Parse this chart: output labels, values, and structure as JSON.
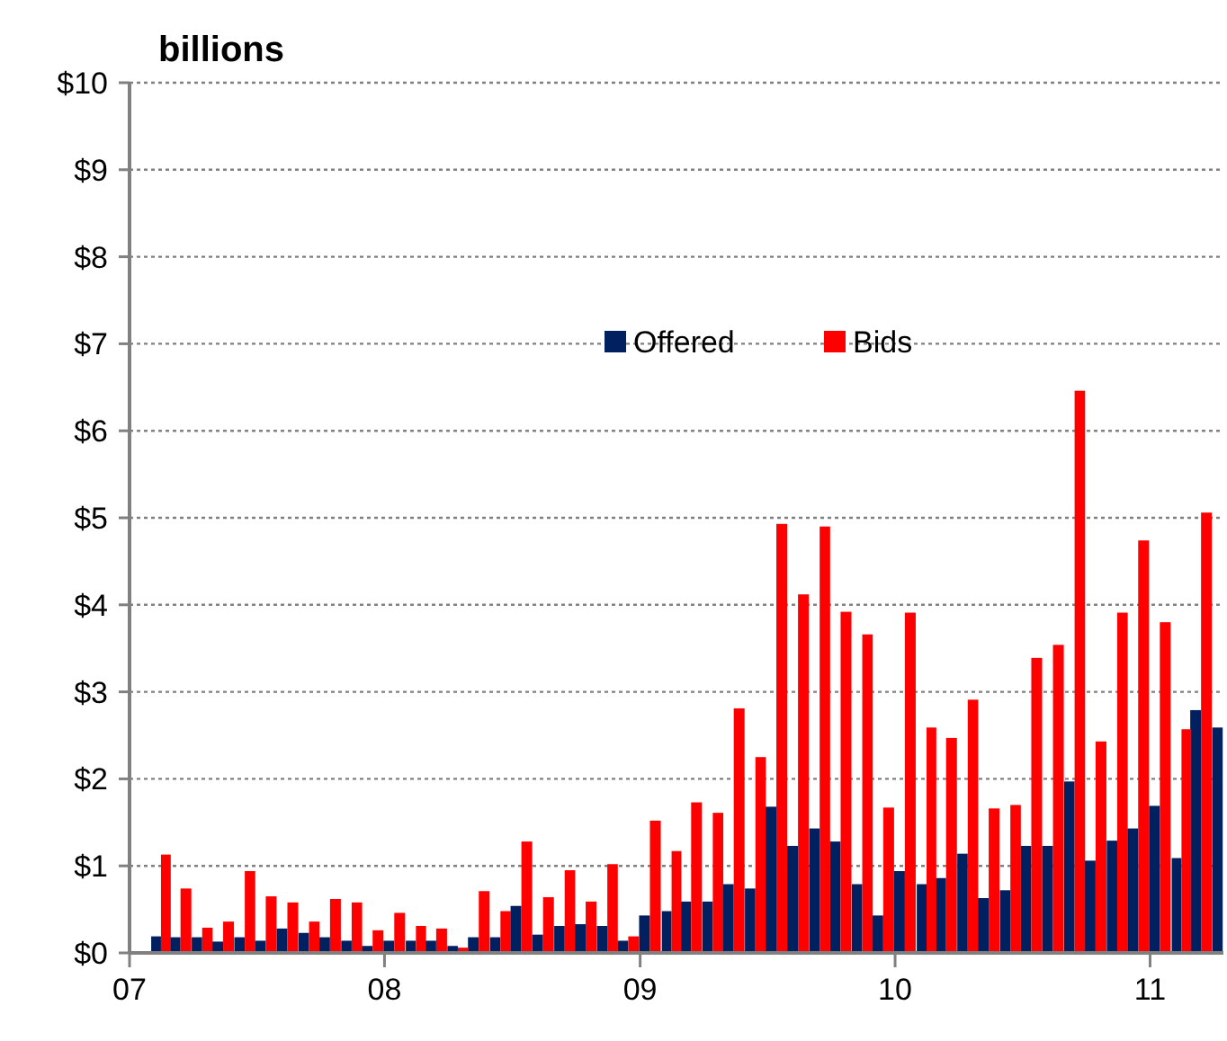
{
  "chart_data": {
    "type": "bar",
    "title": "billions",
    "x": [
      "2007-02-15",
      "2007-03-15",
      "2007-04-15",
      "2007-05-15",
      "2007-06-15",
      "2007-07-15",
      "2007-08-15",
      "2007-09-15",
      "2007-10-15",
      "2007-11-15",
      "2007-12-15",
      "2008-01-15",
      "2008-02-15",
      "2008-03-15",
      "2008-04-15",
      "2008-05-15",
      "2008-06-15",
      "2008-07-15",
      "2008-08-15",
      "2008-09-15",
      "2008-10-15",
      "2008-11-15",
      "2008-12-15",
      "2009-01-15",
      "2009-02-15",
      "2009-03-15",
      "2009-04-15",
      "2009-05-15",
      "2009-06-15",
      "2009-07-15",
      "2009-08-15",
      "2009-09-15",
      "2009-10-15",
      "2009-11-15",
      "2009-12-15",
      "2010-01-15",
      "2010-02-15",
      "2010-03-15",
      "2010-04-15",
      "2010-05-15",
      "2010-06-15",
      "2010-07-15",
      "2010-08-15",
      "2010-09-15",
      "2010-10-15",
      "2010-11-15",
      "2010-12-15",
      "2011-01-15",
      "2011-02-15",
      "2011-03-15",
      "2011-04-15"
    ],
    "series": [
      {
        "name": "Offered",
        "color": "#002060",
        "values": [
          0.19,
          0.18,
          0.18,
          0.13,
          0.18,
          0.14,
          0.28,
          0.23,
          0.18,
          0.14,
          0.08,
          0.14,
          0.14,
          0.14,
          0.08,
          0.18,
          0.18,
          0.54,
          0.21,
          0.31,
          0.33,
          0.31,
          0.14,
          0.43,
          0.48,
          0.59,
          0.59,
          0.79,
          0.74,
          1.68,
          1.23,
          1.43,
          1.28,
          0.79,
          0.43,
          0.94,
          0.79,
          0.86,
          1.14,
          0.63,
          0.72,
          1.23,
          1.23,
          1.97,
          1.06,
          1.29,
          1.43,
          1.69,
          1.09,
          2.79,
          2.59
        ]
      },
      {
        "name": "Bids",
        "color": "#ff0000",
        "values": [
          1.13,
          0.74,
          0.29,
          0.36,
          0.94,
          0.65,
          0.58,
          0.36,
          0.62,
          0.58,
          0.26,
          0.46,
          0.31,
          0.28,
          0.06,
          0.71,
          0.48,
          1.28,
          0.64,
          0.95,
          0.59,
          1.02,
          0.19,
          1.52,
          1.17,
          1.73,
          1.61,
          2.81,
          2.25,
          4.93,
          4.12,
          4.9,
          3.92,
          3.66,
          1.67,
          3.91,
          2.59,
          2.47,
          2.91,
          1.66,
          1.7,
          3.39,
          3.54,
          6.46,
          2.43,
          3.91,
          4.74,
          3.8,
          2.57,
          5.06,
          null
        ]
      }
    ],
    "xlim": [
      "2007-01",
      "2011-04-16"
    ],
    "xticks": [
      {
        "value": "2007",
        "label": "07"
      },
      {
        "value": "2008",
        "label": "08"
      },
      {
        "value": "2009",
        "label": "09"
      },
      {
        "value": "2010",
        "label": "10"
      },
      {
        "value": "2011",
        "label": "11"
      }
    ],
    "ylim": [
      0,
      10
    ],
    "yticks": [
      {
        "value": 0,
        "label": "$0"
      },
      {
        "value": 1,
        "label": "$1"
      },
      {
        "value": 2,
        "label": "$2"
      },
      {
        "value": 3,
        "label": "$3"
      },
      {
        "value": 4,
        "label": "$4"
      },
      {
        "value": 5,
        "label": "$5"
      },
      {
        "value": 6,
        "label": "$6"
      },
      {
        "value": 7,
        "label": "$7"
      },
      {
        "value": 8,
        "label": "$8"
      },
      {
        "value": 9,
        "label": "$9"
      },
      {
        "value": 10,
        "label": "$10"
      }
    ],
    "grid": "y",
    "legend": "top"
  }
}
